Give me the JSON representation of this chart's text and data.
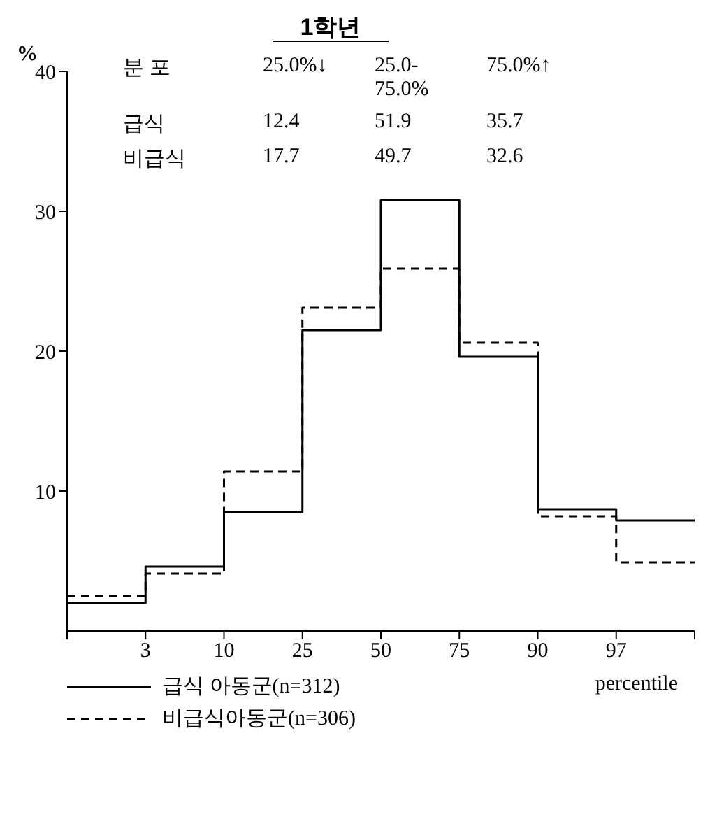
{
  "chart_data": {
    "type": "step",
    "title": "1학년",
    "ylabel": "%",
    "xlabel": "percentile",
    "categories": [
      null,
      "3",
      "10",
      "25",
      "50",
      "75",
      "90",
      "97",
      null
    ],
    "ylim": [
      0,
      40
    ],
    "yticks": [
      10,
      20,
      30,
      40
    ],
    "series": [
      {
        "name": "급식 아동군(n=312)",
        "color": "#000000",
        "line_style": "solid",
        "values": [
          2.0,
          4.6,
          8.5,
          21.5,
          30.8,
          19.6,
          8.7,
          7.9,
          7.9
        ]
      },
      {
        "name": "비급식아동군(n=306)",
        "color": "#000000",
        "line_style": "dashed",
        "values": [
          2.5,
          4.1,
          11.4,
          23.1,
          25.9,
          20.6,
          8.2,
          4.9,
          4.9
        ]
      }
    ],
    "annotations": [
      "분 포",
      "25.0%↓",
      "25.0-75.0%",
      "75.0%↑",
      "급식",
      "12.4",
      "51.9",
      "35.7",
      "비급식",
      "17.7",
      "49.7",
      "32.6"
    ],
    "legend": "bottom"
  }
}
